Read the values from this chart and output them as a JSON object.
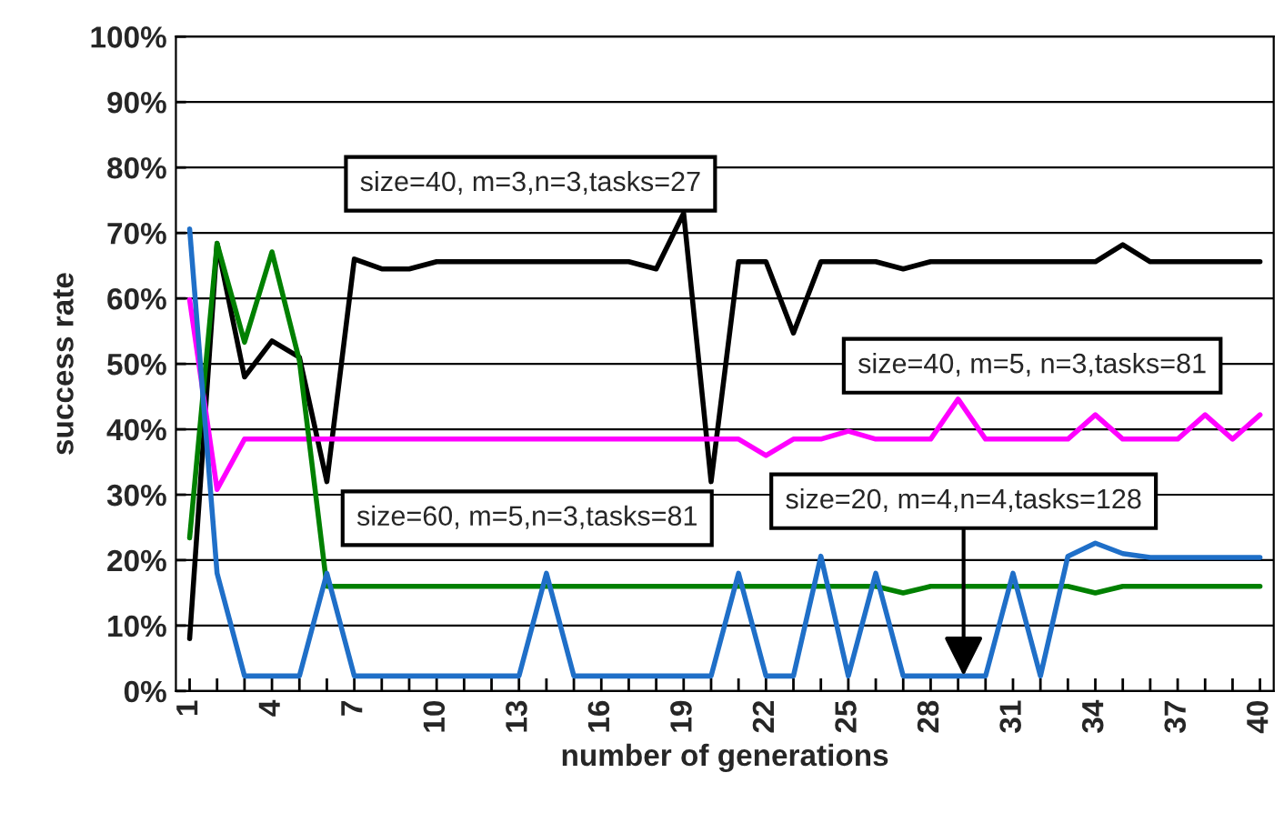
{
  "chart_data": {
    "type": "line",
    "xlabel": "number of generations",
    "ylabel": "success rate",
    "x": [
      1,
      2,
      3,
      4,
      5,
      6,
      7,
      8,
      9,
      10,
      11,
      12,
      13,
      14,
      15,
      16,
      17,
      18,
      19,
      20,
      21,
      22,
      23,
      24,
      25,
      26,
      27,
      28,
      29,
      30,
      31,
      32,
      33,
      34,
      35,
      36,
      37,
      38,
      39,
      40
    ],
    "series": [
      {
        "color": "#000000",
        "values": [
          8,
          68.4,
          48,
          53.5,
          51,
          32,
          66,
          64.5,
          64.5,
          65.6,
          65.6,
          65.6,
          65.6,
          65.6,
          65.6,
          65.6,
          65.6,
          64.5,
          73,
          32,
          65.6,
          65.6,
          54.7,
          65.6,
          65.6,
          65.6,
          64.5,
          65.6,
          65.6,
          65.6,
          65.6,
          65.6,
          65.6,
          65.6,
          68.2,
          65.6,
          65.6,
          65.6,
          65.6,
          65.6
        ]
      },
      {
        "color": "#ff00ff",
        "values": [
          59.8,
          30.8,
          38.5,
          38.5,
          38.5,
          38.5,
          38.5,
          38.5,
          38.5,
          38.5,
          38.5,
          38.5,
          38.5,
          38.5,
          38.5,
          38.5,
          38.5,
          38.5,
          38.5,
          38.5,
          38.5,
          36,
          38.5,
          38.5,
          39.7,
          38.5,
          38.5,
          38.5,
          44.6,
          38.5,
          38.5,
          38.5,
          38.5,
          42.2,
          38.5,
          38.5,
          38.5,
          42.2,
          38.5,
          42.2
        ]
      },
      {
        "color": "#008000",
        "values": [
          23.4,
          68.4,
          53.3,
          67.1,
          50.5,
          16,
          16,
          16,
          16,
          16,
          16,
          16,
          16,
          16,
          16,
          16,
          16,
          16,
          16,
          16,
          16,
          16,
          16,
          16,
          16,
          16,
          15,
          16,
          16,
          16,
          16,
          16,
          16,
          15,
          16,
          16,
          16,
          16,
          16,
          16
        ]
      },
      {
        "color": "#1f6fc8",
        "values": [
          70.6,
          18,
          2.3,
          2.3,
          2.3,
          18,
          2.3,
          2.3,
          2.3,
          2.3,
          2.3,
          2.3,
          2.3,
          18,
          2.3,
          2.3,
          2.3,
          2.3,
          2.3,
          2.3,
          18,
          2.3,
          2.3,
          20.6,
          2.3,
          18,
          2.3,
          2.3,
          2.3,
          2.3,
          18,
          2.3,
          20.6,
          22.6,
          21,
          20.4,
          20.4,
          20.4,
          20.4,
          20.4
        ]
      }
    ],
    "annotations": [
      "size=40, m=3,n=3,tasks=27",
      "size=40, m=5, n=3,tasks=81",
      "size=60, m=5,n=3,tasks=81",
      {
        "text": "size=20, m=4,n=4,tasks=128",
        "x": 29.2,
        "y": 2.3
      }
    ],
    "xlim": [
      0.5,
      40.5
    ],
    "xticks": [
      1,
      {
        "value": 2,
        "label": null
      },
      {
        "value": 3,
        "label": null
      },
      4,
      {
        "value": 5,
        "label": null
      },
      {
        "value": 6,
        "label": null
      },
      7,
      {
        "value": 8,
        "label": null
      },
      {
        "value": 9,
        "label": null
      },
      10,
      {
        "value": 11,
        "label": null
      },
      {
        "value": 12,
        "label": null
      },
      13,
      {
        "value": 14,
        "label": null
      },
      {
        "value": 15,
        "label": null
      },
      16,
      {
        "value": 17,
        "label": null
      },
      {
        "value": 18,
        "label": null
      },
      19,
      {
        "value": 20,
        "label": null
      },
      {
        "value": 21,
        "label": null
      },
      22,
      {
        "value": 23,
        "label": null
      },
      {
        "value": 24,
        "label": null
      },
      25,
      {
        "value": 26,
        "label": null
      },
      {
        "value": 27,
        "label": null
      },
      28,
      {
        "value": 29,
        "label": null
      },
      {
        "value": 30,
        "label": null
      },
      31,
      {
        "value": 32,
        "label": null
      },
      {
        "value": 33,
        "label": null
      },
      34,
      {
        "value": 35,
        "label": null
      },
      {
        "value": 36,
        "label": null
      },
      37,
      {
        "value": 38,
        "label": null
      },
      {
        "value": 39,
        "label": null
      },
      40
    ],
    "ylim": [
      0,
      100
    ],
    "yticks": [
      {
        "value": 0,
        "label": "0%"
      },
      {
        "value": 10,
        "label": "10%"
      },
      {
        "value": 20,
        "label": "20%"
      },
      {
        "value": 30,
        "label": "30%"
      },
      {
        "value": 40,
        "label": "40%"
      },
      {
        "value": 50,
        "label": "50%"
      },
      {
        "value": 60,
        "label": "60%"
      },
      {
        "value": 70,
        "label": "70%"
      },
      {
        "value": 80,
        "label": "80%"
      },
      {
        "value": 90,
        "label": "90%"
      },
      {
        "value": 100,
        "label": "100%"
      }
    ],
    "grid": "y",
    "legend": false,
    "marker": "none",
    "line_style": "solid"
  }
}
